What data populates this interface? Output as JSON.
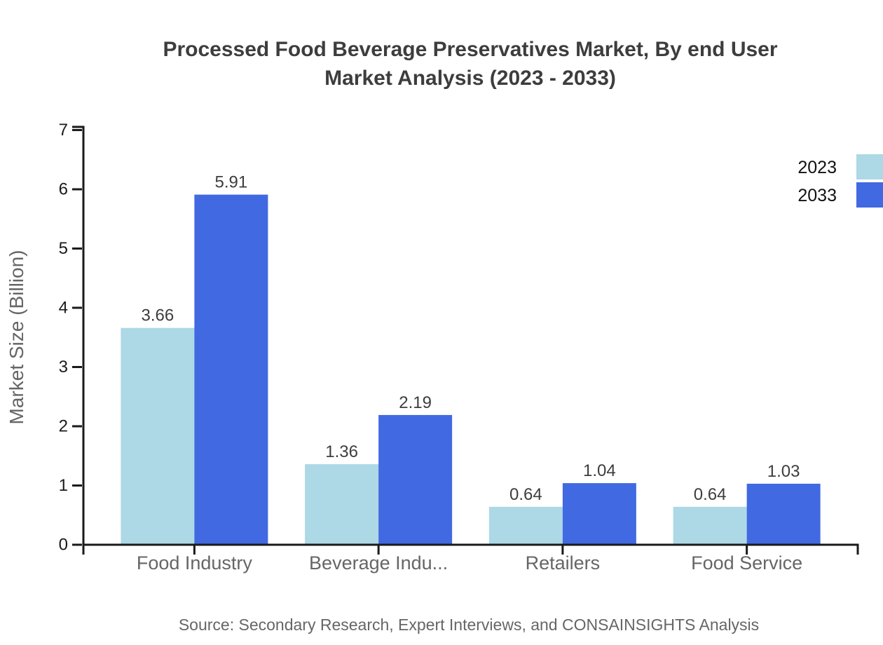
{
  "header": {
    "title_line1": "Processed Food Beverage Preservatives Market, By end User",
    "title_line2": "Market Analysis (2023 - 2033)"
  },
  "footer": {
    "source": "Source: Secondary Research, Expert Interviews, and CONSAINSIGHTS Analysis"
  },
  "chart_data": {
    "type": "bar",
    "title": "Processed Food Beverage Preservatives Market, By end User Market Analysis (2023 - 2033)",
    "categories": [
      "Food Industry",
      "Beverage Indu...",
      "Retailers",
      "Food Service"
    ],
    "series": [
      {
        "name": "2023",
        "color": "#ADD8E6",
        "values": [
          3.66,
          1.36,
          0.64,
          0.64
        ]
      },
      {
        "name": "2033",
        "color": "#4169E1",
        "values": [
          5.91,
          2.19,
          1.04,
          1.03
        ]
      }
    ],
    "xlabel": "",
    "ylabel": "Market Size (Billion)",
    "ylim": [
      0,
      7
    ],
    "yticks": [
      0,
      1,
      2,
      3,
      4,
      5,
      6,
      7
    ],
    "grid": false,
    "legend_position": "top-right",
    "value_label_decimals": 2,
    "colors": {
      "axis": "#1a1a1a",
      "tick_label": "#1a1a1a",
      "category_label": "#666666",
      "value_label": "#3d3d3d",
      "axis_title": "#666666",
      "legend_text": "#111111"
    }
  }
}
